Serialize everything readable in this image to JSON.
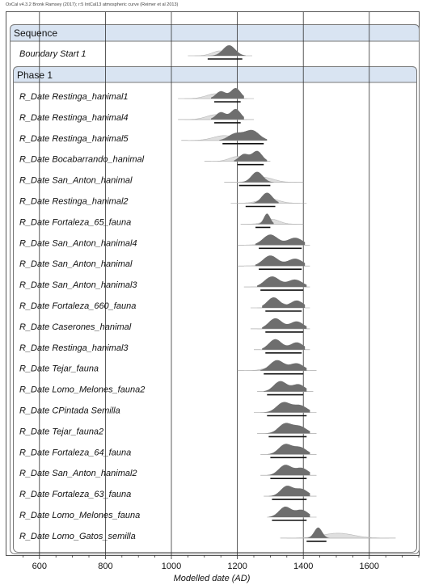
{
  "header_note": "OxCal v4.3.2 Bronk Ramsey (2017); r:5 IntCal13 atmospheric curve (Reimer et al 2013)",
  "colors": {
    "posterior": "#6e6e6e",
    "prior": "#dcdcdc",
    "frame": "#555555",
    "header_fill": "#d9e4f2"
  },
  "chart_data": {
    "type": "oxcal-multiplot",
    "xlabel": "Modelled date (AD)",
    "xlim": [
      500,
      1750
    ],
    "xticks": [
      600,
      800,
      1000,
      1200,
      1400,
      1600
    ],
    "sequence_label": "Sequence",
    "phase_label": "Phase 1",
    "boundary": {
      "name": "Boundary Start 1",
      "peak": 1175,
      "width": 38,
      "range": [
        1110,
        1215
      ]
    },
    "phase_items": [
      {
        "name": "R_Date Restinga_hanimal1",
        "prior": [
          1020,
          1250
        ],
        "post_peaks": [
          1195,
          1150
        ],
        "range": [
          1130,
          1210
        ]
      },
      {
        "name": "R_Date Restinga_hanimal4",
        "prior": [
          1020,
          1250
        ],
        "post_peaks": [
          1195,
          1150
        ],
        "range": [
          1130,
          1210
        ]
      },
      {
        "name": "R_Date Restinga_hanimal5",
        "prior": [
          1030,
          1290
        ],
        "post_peaks": [
          1245,
          1195
        ],
        "range": [
          1155,
          1280
        ]
      },
      {
        "name": "R_Date Bocabarrando_hanimal",
        "prior": [
          1100,
          1300
        ],
        "post_peaks": [
          1260,
          1220
        ],
        "range": [
          1200,
          1280
        ]
      },
      {
        "name": "R_Date San_Anton_hanimal",
        "prior": [
          1160,
          1400
        ],
        "post_peaks": [
          1260,
          1370
        ],
        "range": [
          1205,
          1300
        ]
      },
      {
        "name": "R_Date Restinga_hanimal2",
        "prior": [
          1180,
          1410
        ],
        "post_peaks": [
          1290,
          1375
        ],
        "range": [
          1225,
          1315
        ]
      },
      {
        "name": "R_Date Fortaleza_65_fauna",
        "prior": [
          1210,
          1400
        ],
        "post_peaks": [
          1290,
          1370
        ],
        "range": [
          1255,
          1300
        ]
      },
      {
        "name": "R_Date San_Anton_hanimal4",
        "prior": [
          1200,
          1420
        ],
        "post_peaks": [
          1300,
          1375
        ],
        "range": [
          1265,
          1395
        ]
      },
      {
        "name": "R_Date San_Anton_hanimal",
        "prior": [
          1200,
          1420
        ],
        "post_peaks": [
          1300,
          1375
        ],
        "range": [
          1265,
          1395
        ]
      },
      {
        "name": "R_Date San_Anton_hanimal3",
        "prior": [
          1220,
          1420
        ],
        "post_peaks": [
          1305,
          1375
        ],
        "range": [
          1270,
          1400
        ]
      },
      {
        "name": "R_Date Fortaleza_660_fauna",
        "prior": [
          1240,
          1420
        ],
        "post_peaks": [
          1310,
          1380
        ],
        "range": [
          1285,
          1395
        ]
      },
      {
        "name": "R_Date Caserones_hanimal",
        "prior": [
          1240,
          1420
        ],
        "post_peaks": [
          1315,
          1380
        ],
        "range": [
          1285,
          1400
        ]
      },
      {
        "name": "R_Date Restinga_hanimal3",
        "prior": [
          1250,
          1420
        ],
        "post_peaks": [
          1315,
          1380
        ],
        "range": [
          1285,
          1395
        ]
      },
      {
        "name": "R_Date Tejar_fauna",
        "prior": [
          1200,
          1440
        ],
        "post_peaks": [
          1320,
          1380
        ],
        "range": [
          1280,
          1400
        ]
      },
      {
        "name": "R_Date Lomo_Melones_fauna2",
        "prior": [
          1260,
          1430
        ],
        "post_peaks": [
          1330,
          1385
        ],
        "range": [
          1290,
          1400
        ]
      },
      {
        "name": "R_Date CPintada Semilla",
        "prior": [
          1250,
          1440
        ],
        "post_peaks": [
          1340,
          1390
        ],
        "range": [
          1290,
          1410
        ]
      },
      {
        "name": "R_Date Tejar_fauna2",
        "prior": [
          1260,
          1440
        ],
        "post_peaks": [
          1345,
          1390
        ],
        "range": [
          1295,
          1410
        ]
      },
      {
        "name": "R_Date Fortaleza_64_fauna",
        "prior": [
          1270,
          1440
        ],
        "post_peaks": [
          1345,
          1390
        ],
        "range": [
          1300,
          1410
        ]
      },
      {
        "name": "R_Date San_Anton_hanimal2",
        "prior": [
          1270,
          1440
        ],
        "post_peaks": [
          1345,
          1395
        ],
        "range": [
          1300,
          1410
        ]
      },
      {
        "name": "R_Date Fortaleza_63_fauna",
        "prior": [
          1280,
          1440
        ],
        "post_peaks": [
          1350,
          1395
        ],
        "range": [
          1305,
          1410
        ]
      },
      {
        "name": "R_Date Lomo_Melones_fauna",
        "prior": [
          1290,
          1440
        ],
        "post_peaks": [
          1345,
          1395
        ],
        "range": [
          1305,
          1410
        ]
      },
      {
        "name": "R_Date Lomo_Gatos_semilla",
        "prior": [
          1330,
          1680
        ],
        "post_peaks": [
          1445
        ],
        "range": [
          1410,
          1470
        ]
      }
    ]
  }
}
